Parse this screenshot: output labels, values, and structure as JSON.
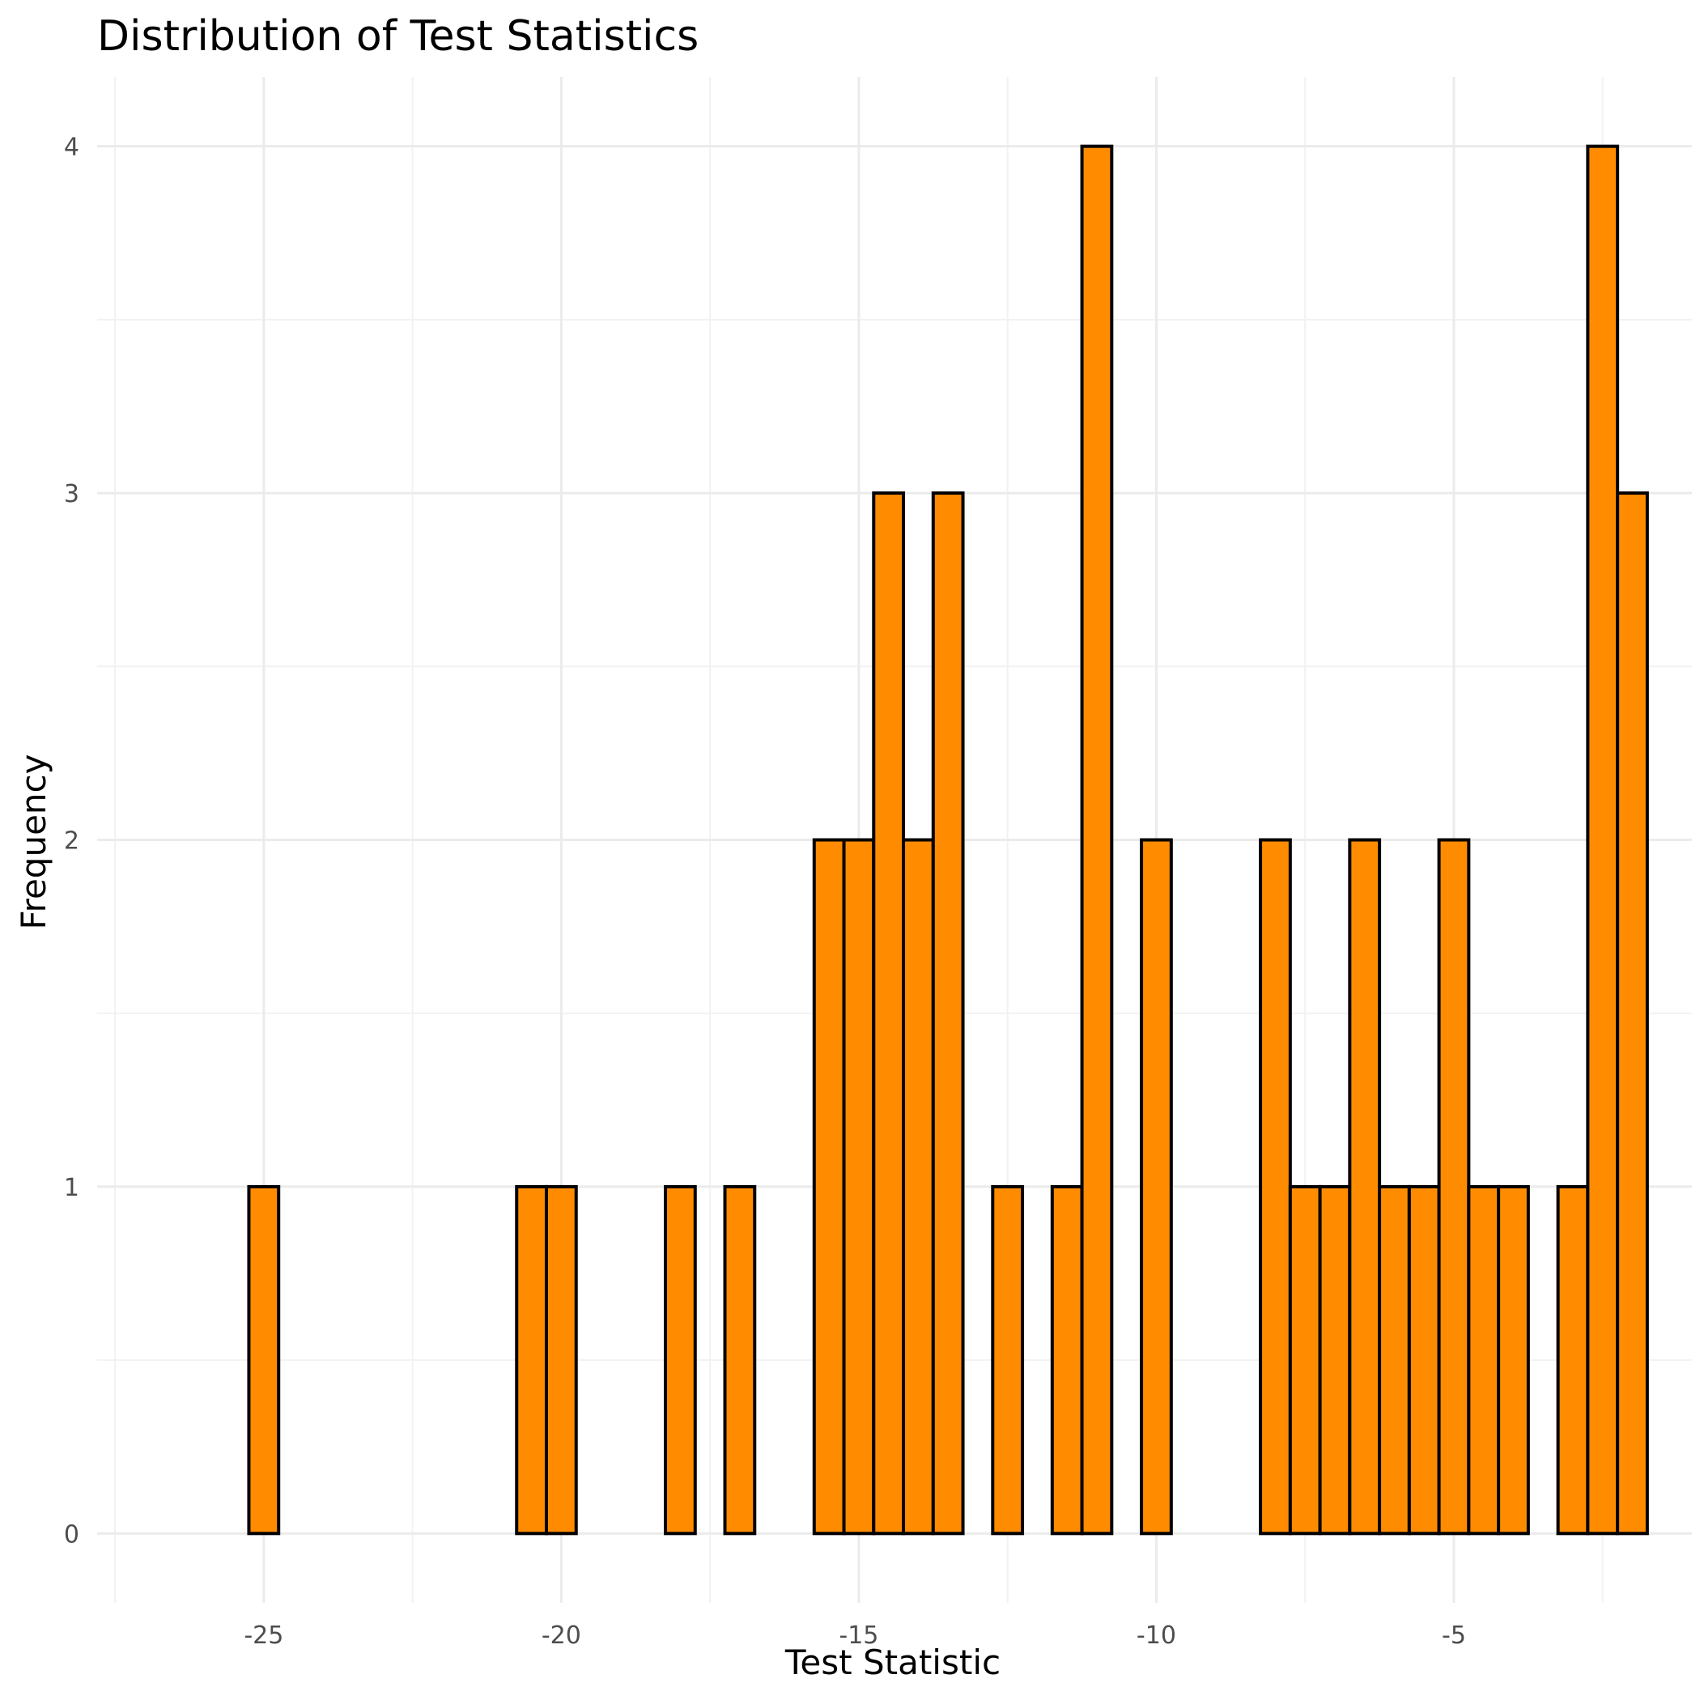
{
  "chart_data": {
    "type": "bar",
    "title": "Distribution of Test Statistics",
    "xlabel": "Test Statistic",
    "ylabel": "Frequency",
    "xlim": [
      -27.8,
      -1.0
    ],
    "ylim": [
      -0.2,
      4.2
    ],
    "x_ticks": [
      -25,
      -20,
      -15,
      -10,
      -5
    ],
    "x_tick_labels": [
      "-25",
      "-20",
      "-15",
      "-10",
      "-5"
    ],
    "y_ticks": [
      0,
      1,
      2,
      3,
      4
    ],
    "y_tick_labels": [
      "0",
      "1",
      "2",
      "3",
      "4"
    ],
    "bin_width": 0.5,
    "bin_centers": [
      -25.0,
      -24.5,
      -24.0,
      -23.5,
      -23.0,
      -22.5,
      -22.0,
      -21.5,
      -21.0,
      -20.5,
      -20.0,
      -19.5,
      -19.0,
      -18.5,
      -18.0,
      -17.5,
      -17.0,
      -16.5,
      -16.0,
      -15.5,
      -15.0,
      -14.5,
      -14.0,
      -13.5,
      -13.0,
      -12.5,
      -12.0,
      -11.5,
      -11.0,
      -10.5,
      -10.0,
      -9.5,
      -9.0,
      -8.5,
      -8.0,
      -7.5,
      -7.0,
      -6.5,
      -6.0,
      -5.5,
      -5.0,
      -4.5,
      -4.0,
      -3.5,
      -3.0,
      -2.5,
      -2.0
    ],
    "counts": [
      1,
      0,
      0,
      0,
      0,
      0,
      0,
      0,
      0,
      1,
      1,
      0,
      0,
      0,
      1,
      0,
      1,
      0,
      0,
      2,
      2,
      3,
      2,
      3,
      0,
      1,
      0,
      1,
      4,
      0,
      2,
      0,
      0,
      0,
      2,
      1,
      1,
      2,
      1,
      1,
      2,
      1,
      1,
      0,
      1,
      4,
      3
    ],
    "grid": true,
    "colors": {
      "bar_fill": "#ff8c00",
      "bar_outline": "#000000",
      "grid": "#ebebeb",
      "background": "#ffffff"
    }
  }
}
